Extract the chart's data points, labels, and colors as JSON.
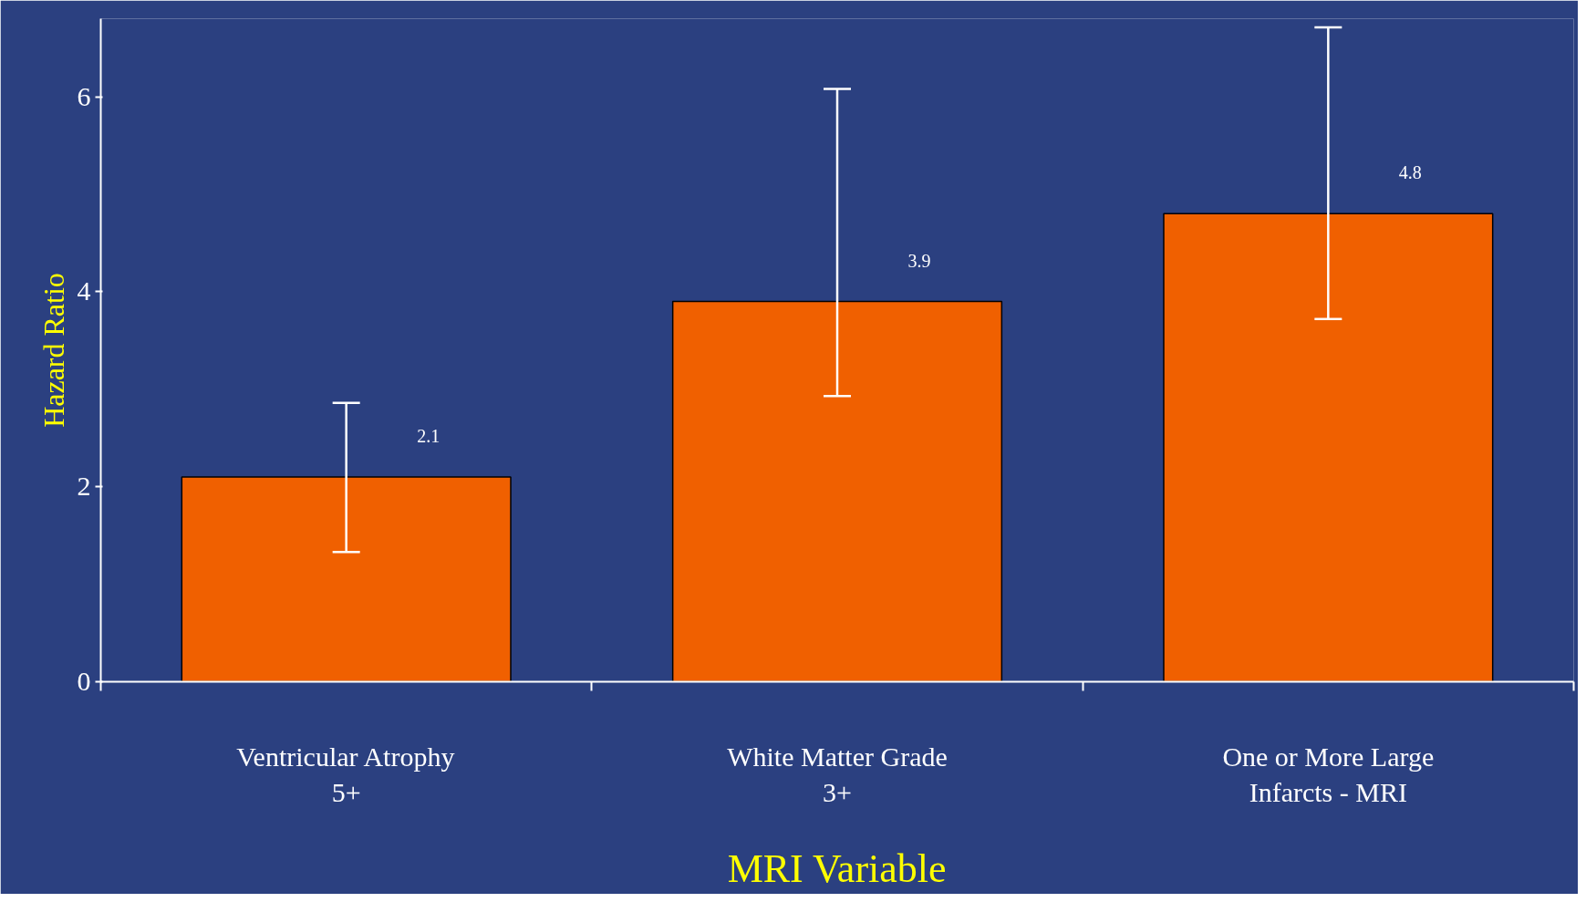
{
  "chart_data": {
    "type": "bar",
    "ylabel": "Hazard Ratio",
    "xlabel": "MRI Variable",
    "categories": [
      "Ventricular Atrophy\n5+",
      "White Matter Grade\n3+",
      "One or More Large\nInfarcts - MRI"
    ],
    "values": [
      2.1,
      3.9,
      4.8
    ],
    "errors": [
      [
        1.33,
        2.86
      ],
      [
        2.93,
        6.08
      ],
      [
        3.72,
        6.71
      ]
    ],
    "color": "#f06000",
    "data_labels": true,
    "ylim": [
      0,
      6.8
    ],
    "yticks": [
      0,
      2,
      4,
      6
    ],
    "grid": false
  }
}
